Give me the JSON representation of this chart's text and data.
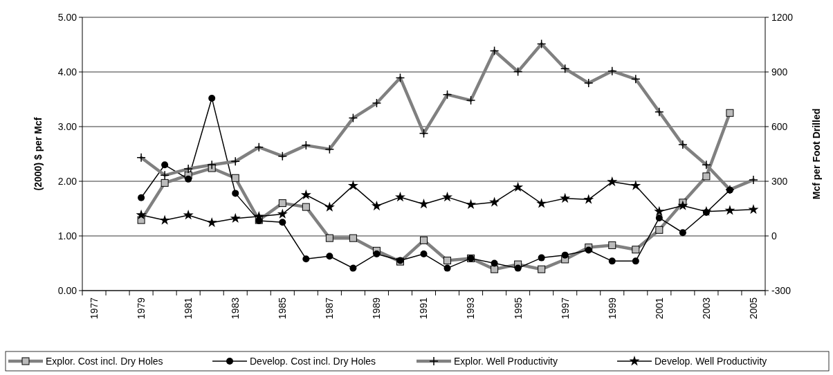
{
  "chart_data": {
    "type": "line",
    "ylabel": "(2000) $ per Mcf",
    "y2label": "Mcf per Foot Drilled",
    "categories": [
      "1977",
      null,
      "1979",
      null,
      "1981",
      null,
      "1983",
      null,
      "1985",
      null,
      "1987",
      null,
      "1989",
      null,
      "1991",
      null,
      "1993",
      null,
      "1995",
      null,
      "1997",
      null,
      "1999",
      null,
      "2001",
      null,
      "2003",
      null,
      "2005"
    ],
    "series": [
      {
        "name": "Explor. Cost incl. Dry Holes",
        "color": "#808080",
        "marker": "square",
        "values": [
          null,
          null,
          1.29,
          1.97,
          2.11,
          2.24,
          2.06,
          1.29,
          1.6,
          1.53,
          0.96,
          0.96,
          0.73,
          0.53,
          0.92,
          0.55,
          0.59,
          0.39,
          0.48,
          0.39,
          0.57,
          0.79,
          0.83,
          0.75,
          1.11,
          1.61,
          2.09,
          3.25,
          null
        ]
      },
      {
        "name": "Develop. Cost incl. Dry Holes",
        "color": "#000000",
        "marker": "circle",
        "values": [
          null,
          null,
          1.7,
          2.3,
          2.04,
          3.52,
          1.78,
          1.28,
          1.25,
          0.58,
          0.63,
          0.41,
          0.67,
          0.55,
          0.67,
          0.41,
          0.59,
          0.5,
          0.41,
          0.6,
          0.65,
          0.74,
          0.54,
          0.54,
          1.33,
          1.06,
          1.43,
          1.84,
          null
        ]
      },
      {
        "name": "Explor. Well Productivity",
        "color": "#808080",
        "marker": "cross",
        "axis": "y2",
        "values": [
          null,
          null,
          430,
          333,
          368,
          390,
          409,
          487,
          438,
          497,
          476,
          647,
          729,
          868,
          563,
          776,
          744,
          1016,
          902,
          1054,
          918,
          839,
          905,
          861,
          681,
          501,
          390,
          254,
          308
        ]
      },
      {
        "name": "Develop. Well Productivity",
        "color": "#000000",
        "marker": "star",
        "axis": "y2",
        "values": [
          null,
          null,
          115,
          86,
          114,
          73,
          96,
          107,
          120,
          225,
          158,
          276,
          164,
          213,
          175,
          213,
          172,
          185,
          267,
          178,
          206,
          200,
          297,
          276,
          134,
          166,
          134,
          140,
          145
        ]
      }
    ],
    "ylim": [
      0,
      5
    ],
    "yticks": [
      {
        "value": 0,
        "label": "0.00"
      },
      {
        "value": 1,
        "label": "1.00"
      },
      {
        "value": 2,
        "label": "2.00"
      },
      {
        "value": 3,
        "label": "3.00"
      },
      {
        "value": 4,
        "label": "4.00"
      },
      {
        "value": 5,
        "label": "5.00"
      }
    ],
    "y2lim": [
      -300,
      1200
    ],
    "y2ticks": [
      -300,
      0,
      300,
      600,
      900,
      1200
    ],
    "grid": "y",
    "legend": "bottom"
  }
}
